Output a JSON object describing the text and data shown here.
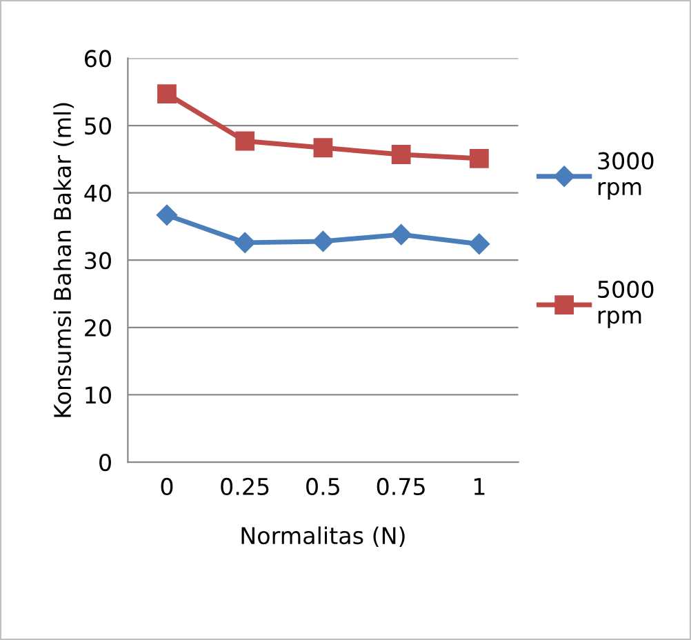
{
  "chart_data": {
    "type": "line",
    "xlabel": "Normalitas (N)",
    "ylabel": "Konsumsi Bahan Bakar (ml)",
    "categories": [
      "0",
      "0.25",
      "0.5",
      "0.75",
      "1"
    ],
    "series": [
      {
        "name": "3000\nrpm",
        "color": "#4a7ebb",
        "marker": "diamond",
        "values": [
          36.7,
          32.6,
          32.8,
          33.8,
          32.4
        ]
      },
      {
        "name": "5000\nrpm",
        "color": "#be4b48",
        "marker": "square",
        "values": [
          54.7,
          47.7,
          46.7,
          45.7,
          45.1
        ]
      }
    ],
    "ylim": [
      0,
      60
    ],
    "yticks": [
      0,
      10,
      20,
      30,
      40,
      50,
      60
    ],
    "grid": "y",
    "legend": "right"
  }
}
